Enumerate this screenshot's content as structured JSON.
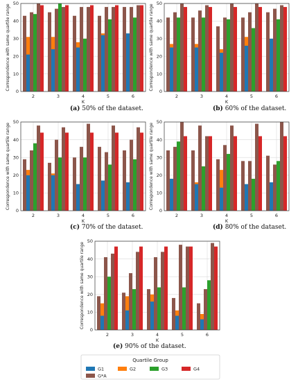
{
  "chart_data": [
    {
      "id": "a",
      "type": "bar",
      "title": "",
      "xlabel": "K",
      "ylabel": "Correspondence with same quartile range",
      "categories": [
        "2",
        "3",
        "4",
        "5",
        "6"
      ],
      "ylim": [
        0,
        50
      ],
      "yticks": [
        0,
        10,
        20,
        30,
        40,
        50
      ],
      "grid": true,
      "caption_letter": "(a)",
      "caption_text": "50% of the dataset.",
      "series": [
        {
          "name": "G1",
          "values": [
            21,
            24,
            25,
            32,
            33
          ]
        },
        {
          "name": "G2",
          "values": [
            31,
            31,
            28,
            33,
            28
          ]
        },
        {
          "name": "G3",
          "values": [
            44,
            50,
            30,
            41,
            42
          ]
        },
        {
          "name": "G4",
          "values": [
            49,
            49,
            49,
            49,
            49
          ]
        }
      ],
      "gstar": [
        [
          43,
          45,
          50
        ],
        [
          45,
          47,
          48
        ],
        [
          43,
          48,
          48
        ],
        [
          43,
          48,
          48
        ],
        [
          48,
          48,
          49
        ]
      ]
    },
    {
      "id": "b",
      "type": "bar",
      "title": "",
      "xlabel": "K",
      "ylabel": "Correspondence with same quartile range",
      "categories": [
        "2",
        "3",
        "4",
        "5",
        "6"
      ],
      "ylim": [
        0,
        50
      ],
      "yticks": [
        0,
        10,
        20,
        30,
        40,
        50
      ],
      "grid": true,
      "caption_letter": "(b)",
      "caption_text": "60% of the dataset.",
      "series": [
        {
          "name": "G1",
          "values": [
            25,
            25,
            22,
            26,
            30
          ]
        },
        {
          "name": "G2",
          "values": [
            27,
            27,
            24,
            31,
            28
          ]
        },
        {
          "name": "G3",
          "values": [
            42,
            42,
            41,
            36,
            41
          ]
        },
        {
          "name": "G4",
          "values": [
            48,
            48,
            48,
            48,
            48
          ]
        }
      ],
      "gstar": [
        [
          42,
          45,
          50
        ],
        [
          42,
          46,
          49
        ],
        [
          37,
          42,
          50
        ],
        [
          42,
          45,
          50
        ],
        [
          45,
          47,
          49
        ]
      ]
    },
    {
      "id": "c",
      "type": "bar",
      "title": "",
      "xlabel": "K",
      "ylabel": "Correspondence with same quartile range",
      "categories": [
        "2",
        "3",
        "4",
        "5",
        "6"
      ],
      "ylim": [
        0,
        50
      ],
      "yticks": [
        0,
        10,
        20,
        30,
        40,
        50
      ],
      "grid": true,
      "caption_letter": "(c)",
      "caption_text": "70% of the dataset.",
      "series": [
        {
          "name": "G1",
          "values": [
            20,
            20,
            15,
            17,
            16
          ]
        },
        {
          "name": "G2",
          "values": [
            23,
            21,
            15,
            17,
            14
          ]
        },
        {
          "name": "G3",
          "values": [
            38,
            30,
            30,
            26,
            29
          ]
        },
        {
          "name": "G4",
          "values": [
            44,
            44,
            44,
            44,
            44
          ]
        }
      ],
      "gstar": [
        [
          29,
          34,
          48
        ],
        [
          27,
          40,
          47
        ],
        [
          30,
          36,
          49
        ],
        [
          36,
          33,
          48
        ],
        [
          34,
          40,
          47
        ]
      ]
    },
    {
      "id": "d",
      "type": "bar",
      "title": "",
      "xlabel": "K",
      "ylabel": "Correspondence with same quartile range",
      "categories": [
        "2",
        "3",
        "4",
        "5",
        "6"
      ],
      "ylim": [
        0,
        50
      ],
      "yticks": [
        0,
        10,
        20,
        30,
        40,
        50
      ],
      "grid": true,
      "caption_letter": "(d)",
      "caption_text": "80% of the dataset.",
      "series": [
        {
          "name": "G1",
          "values": [
            18,
            15,
            13,
            15,
            16
          ]
        },
        {
          "name": "G2",
          "values": [
            18,
            16,
            23,
            11,
            11
          ]
        },
        {
          "name": "G3",
          "values": [
            39,
            25,
            32,
            18,
            28
          ]
        },
        {
          "name": "G4",
          "values": [
            42,
            42,
            42,
            42,
            42
          ]
        }
      ],
      "gstar": [
        [
          34,
          36,
          50
        ],
        [
          34,
          48,
          42
        ],
        [
          29,
          37,
          48
        ],
        [
          28,
          28,
          49
        ],
        [
          31,
          26,
          50
        ]
      ]
    },
    {
      "id": "e",
      "type": "bar",
      "title": "",
      "xlabel": "K",
      "ylabel": "Correspondence with same quartile range",
      "categories": [
        "2",
        "3",
        "4",
        "5",
        "6"
      ],
      "ylim": [
        0,
        50
      ],
      "yticks": [
        0,
        10,
        20,
        30,
        40,
        50
      ],
      "grid": true,
      "caption_letter": "(e)",
      "caption_text": "90% of the dataset.",
      "series": [
        {
          "name": "G1",
          "values": [
            8,
            11,
            16,
            8,
            6
          ]
        },
        {
          "name": "G2",
          "values": [
            15,
            19,
            20,
            11,
            9
          ]
        },
        {
          "name": "G3",
          "values": [
            30,
            23,
            24,
            24,
            28
          ]
        },
        {
          "name": "G4",
          "values": [
            47,
            47,
            47,
            47,
            47
          ]
        }
      ],
      "gstar": [
        [
          19,
          41,
          43
        ],
        [
          21,
          32,
          44
        ],
        [
          23,
          41,
          44
        ],
        [
          18,
          48,
          47
        ],
        [
          15,
          23,
          49
        ]
      ]
    }
  ],
  "legend": {
    "title": "Quartile Group",
    "entries": [
      {
        "label": "G1",
        "color": "#1f77b4"
      },
      {
        "label": "G2",
        "color": "#ff7f0e"
      },
      {
        "label": "G3",
        "color": "#2ca02c"
      },
      {
        "label": "G4",
        "color": "#d62728"
      },
      {
        "label": "G*A",
        "color": "#8c564b"
      }
    ]
  },
  "colors": {
    "G1": "#1f77b4",
    "G2": "#ff7f0e",
    "G3": "#2ca02c",
    "G4": "#d62728",
    "GA": "#8c564b"
  }
}
